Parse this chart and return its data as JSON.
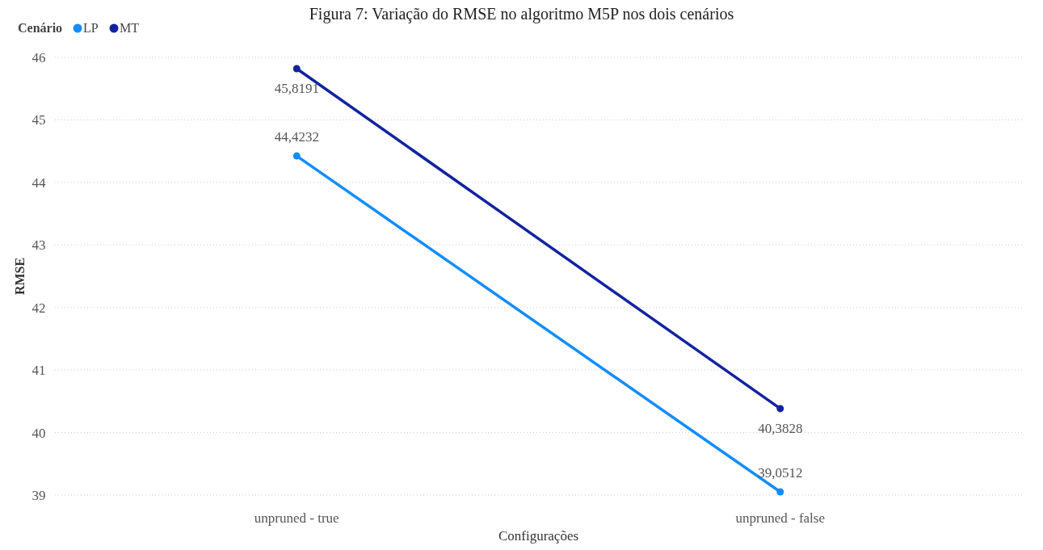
{
  "chart_data": {
    "type": "line",
    "title": "Figura 7: Variação do RMSE no algoritmo M5P nos dois cenários",
    "xlabel": "Configurações",
    "ylabel": "RMSE",
    "legend_title": "Cenário",
    "categories": [
      "unpruned - true",
      "unpruned - false"
    ],
    "series": [
      {
        "name": "LP",
        "color": "#118dff",
        "values": [
          44.4232,
          39.0512
        ],
        "value_labels": [
          "44,4232",
          "39,0512"
        ]
      },
      {
        "name": "MT",
        "color": "#12239e",
        "values": [
          45.8191,
          40.3828
        ],
        "value_labels": [
          "45,8191",
          "40,3828"
        ]
      }
    ],
    "ylim": [
      39,
      46
    ],
    "yticks": [
      39,
      40,
      41,
      42,
      43,
      44,
      45,
      46
    ],
    "grid": "y",
    "legend": "top left",
    "marker": "circle",
    "line_style": "solid"
  }
}
